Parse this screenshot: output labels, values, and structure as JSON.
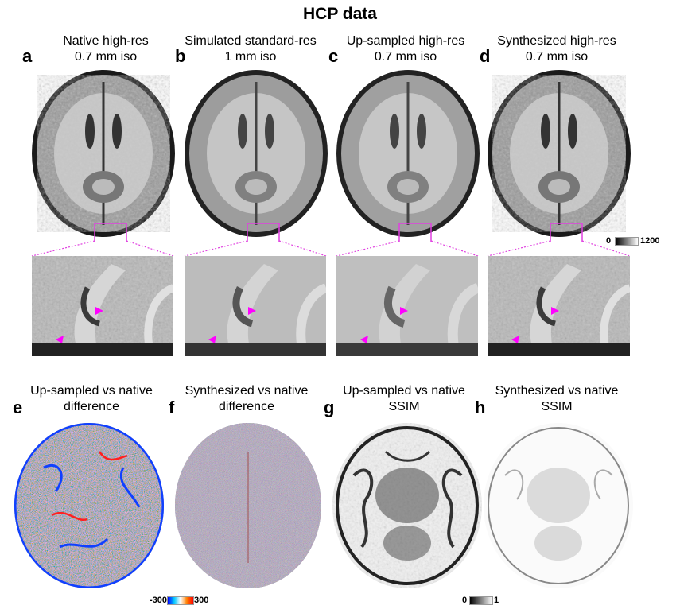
{
  "figure": {
    "title": "HCP data",
    "colors": {
      "zoom_box": "#e040e0",
      "arrow": "#ff00ff"
    }
  },
  "top_row": [
    {
      "letter": "a",
      "line1": "Native high-res",
      "line2": "0.7 mm iso",
      "icon": "brain-axial-t1"
    },
    {
      "letter": "b",
      "line1": "Simulated standard-res",
      "line2": "1 mm iso",
      "icon": "brain-axial-t1-blurred"
    },
    {
      "letter": "c",
      "line1": "Up-sampled high-res",
      "line2": "0.7 mm iso",
      "icon": "brain-axial-t1-smooth"
    },
    {
      "letter": "d",
      "line1": "Synthesized high-res",
      "line2": "0.7 mm iso",
      "icon": "brain-axial-t1-synth"
    }
  ],
  "top_colorbar": {
    "min": "0",
    "max": "1200",
    "colors": [
      "#000000",
      "#ffffff"
    ]
  },
  "bottom_row": [
    {
      "letter": "e",
      "line1": "Up-sampled vs native",
      "line2": "difference",
      "icon": "difference-map"
    },
    {
      "letter": "f",
      "line1": "Synthesized vs native",
      "line2": "difference",
      "icon": "difference-map-low"
    },
    {
      "letter": "g",
      "line1": "Up-sampled vs native",
      "line2": "SSIM",
      "icon": "ssim-map"
    },
    {
      "letter": "h",
      "line1": "Synthesized vs native",
      "line2": "SSIM",
      "icon": "ssim-map-high"
    }
  ],
  "diff_colorbar": {
    "min": "-300",
    "max": "300",
    "colors": [
      "#0000ff",
      "#00c8ff",
      "#ffffff",
      "#ff8000",
      "#ff0000"
    ]
  },
  "ssim_colorbar": {
    "min": "0",
    "max": "1",
    "colors": [
      "#000000",
      "#ffffff"
    ]
  }
}
